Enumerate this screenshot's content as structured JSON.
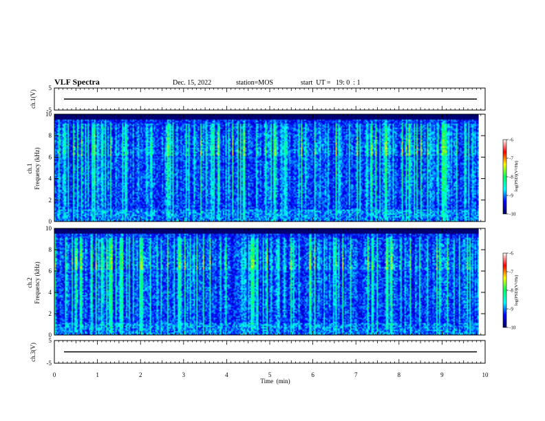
{
  "header": {
    "title": "VLF Spectra",
    "date": "Dec. 15, 2022",
    "station": "station=MOS",
    "start": "start  UT =   19: 0  : 1"
  },
  "chart_data": [
    {
      "type": "line",
      "id": "ch1-waveform",
      "ylabel": "ch.1(V)",
      "ylim": [
        -5,
        5
      ],
      "yticks": [
        "5",
        "-5"
      ],
      "xlim": [
        0,
        10
      ],
      "baseline": 0,
      "color": "#000000"
    },
    {
      "type": "heatmap",
      "id": "ch1-spectrogram",
      "ylabel_top": "ch.1",
      "ylabel": "Frequency (kHz)",
      "ylim": [
        0,
        10
      ],
      "yticks": [
        "0",
        "2",
        "4",
        "6",
        "8",
        "10"
      ],
      "xlim": [
        0,
        10
      ],
      "data_extent_x": [
        0,
        9.85
      ],
      "colorbar": {
        "label": "log(PSD)(V²/Hz)",
        "range": [
          -10,
          -6
        ],
        "ticks": [
          "-6",
          "-7",
          "-8",
          "-9",
          "-10"
        ],
        "colors": [
          "#000060",
          "#0000ff",
          "#00ffff",
          "#00ff60",
          "#ffff00",
          "#ff0000",
          "#ffffff"
        ]
      }
    },
    {
      "type": "heatmap",
      "id": "ch2-spectrogram",
      "ylabel_top": "ch.2",
      "ylabel": "Frequency (kHz)",
      "ylim": [
        0,
        10
      ],
      "yticks": [
        "0",
        "2",
        "4",
        "6",
        "8",
        "10"
      ],
      "xlim": [
        0,
        10
      ],
      "data_extent_x": [
        0,
        9.85
      ],
      "colorbar": {
        "label": "log(PSD)(V²/Hz)",
        "range": [
          -10,
          -6
        ],
        "ticks": [
          "-6",
          "-7",
          "-8",
          "-9",
          "-10"
        ],
        "colors": [
          "#000060",
          "#0000ff",
          "#00ffff",
          "#00ff60",
          "#ffff00",
          "#ff0000",
          "#ffffff"
        ]
      }
    },
    {
      "type": "line",
      "id": "ch3-waveform",
      "ylabel": "ch.3(V)",
      "ylim": [
        -5,
        5
      ],
      "yticks": [
        "5",
        "-5"
      ],
      "xlim": [
        0,
        10
      ],
      "baseline": 0,
      "color": "#000000"
    }
  ],
  "xaxis": {
    "label": "Time  (min)",
    "ticks": [
      "0",
      "1",
      "2",
      "3",
      "4",
      "5",
      "6",
      "7",
      "8",
      "9",
      "10"
    ]
  }
}
